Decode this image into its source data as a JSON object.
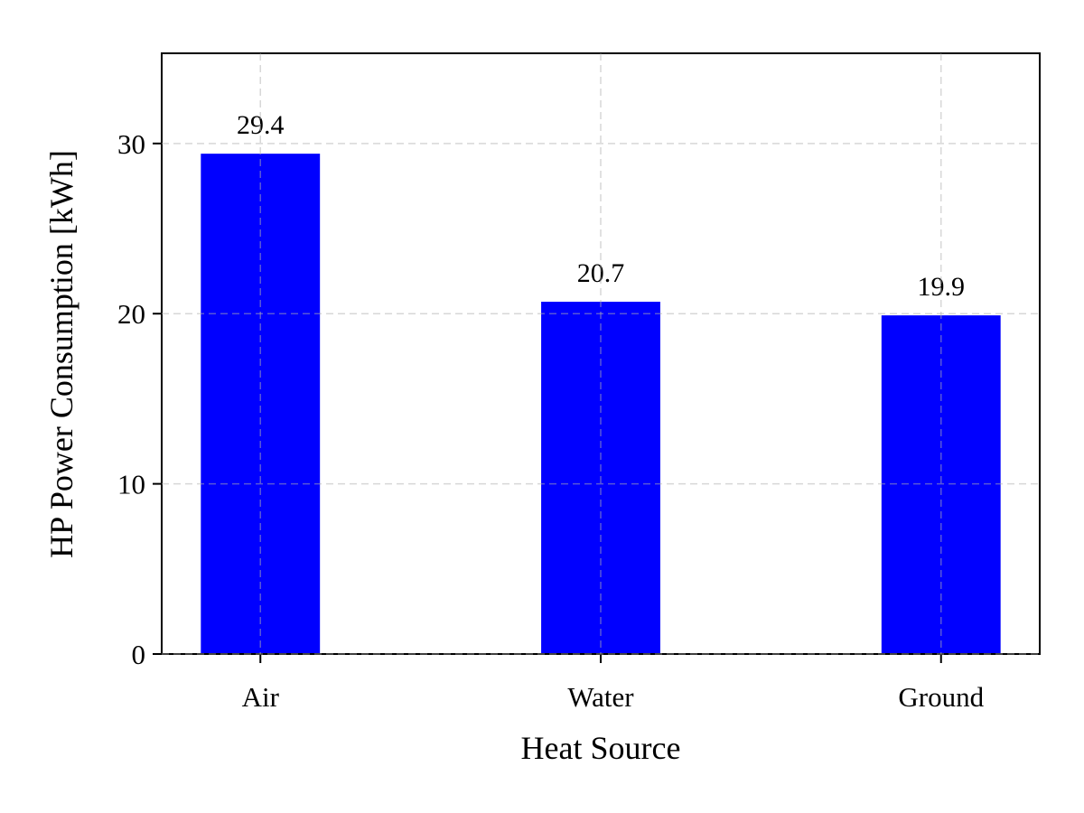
{
  "chart_data": {
    "type": "bar",
    "title": "",
    "xlabel": "Heat Source",
    "ylabel": "HP Power Consumption [kWh]",
    "categories": [
      "Air",
      "Water",
      "Ground"
    ],
    "values": [
      29.4,
      20.7,
      19.9
    ],
    "value_labels": [
      "29.4",
      "20.7",
      "19.9"
    ],
    "ylim": [
      0,
      35.3
    ],
    "yticks": [
      0,
      10,
      20,
      30
    ],
    "ytick_labels": [
      "0",
      "10",
      "20",
      "30"
    ],
    "grid": true,
    "bar_color": "#0000ff"
  }
}
